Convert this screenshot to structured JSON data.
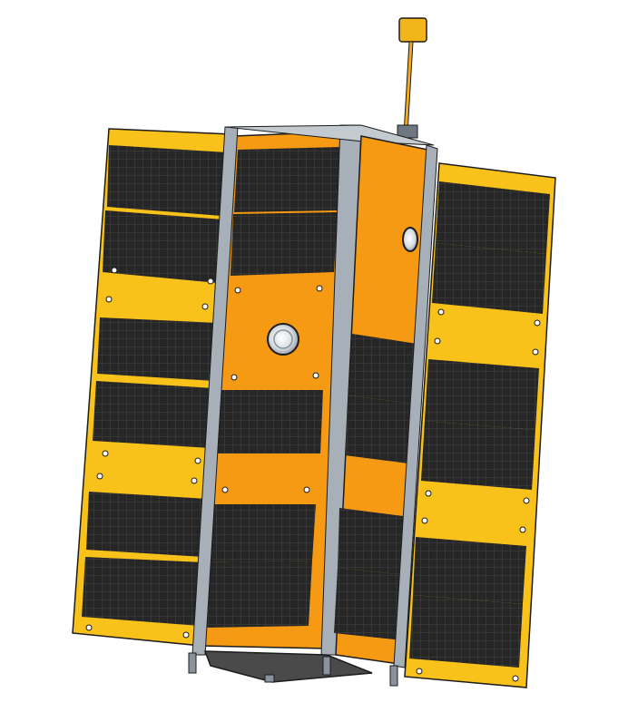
{
  "colors": {
    "background": "#ffffff",
    "panel_yellow": "#f8c21a",
    "panel_orange": "#f7a51a",
    "body_orange": "#f59a12",
    "cell_dark": "#262626",
    "cell_line": "#3e3e3e",
    "frame_grey": "#a7b0b8",
    "frame_grey_dark": "#6f7880",
    "outline": "#1c1c1c",
    "base_plate": "#4a4a4a",
    "antenna": "#f3a91c"
  },
  "icons": {
    "subject": "satellite-icon",
    "antenna": "antenna-icon",
    "port": "optical-port-icon"
  }
}
